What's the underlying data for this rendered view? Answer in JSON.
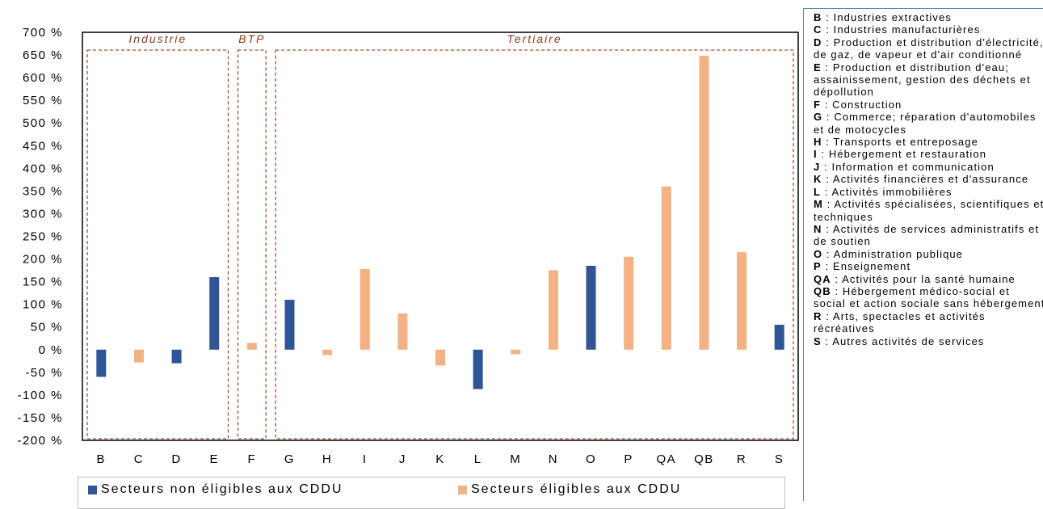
{
  "chart_data": {
    "type": "bar",
    "categories": [
      "B",
      "C",
      "D",
      "E",
      "F",
      "G",
      "H",
      "I",
      "J",
      "K",
      "L",
      "M",
      "N",
      "O",
      "P",
      "QA",
      "QB",
      "R",
      "S"
    ],
    "values": [
      -60,
      -28,
      -30,
      160,
      15,
      110,
      -12,
      178,
      80,
      -35,
      -87,
      -10,
      175,
      185,
      205,
      360,
      648,
      215,
      55
    ],
    "eligible": [
      false,
      true,
      false,
      false,
      true,
      false,
      true,
      true,
      true,
      true,
      false,
      true,
      true,
      false,
      true,
      true,
      true,
      true,
      false
    ],
    "ylim": [
      -200,
      700
    ],
    "ystep": 50,
    "y_tick_suffix": " %",
    "colors": {
      "non_eligible": "#2f5597",
      "eligible": "#f4b183",
      "group_border": "#a0522d"
    },
    "groups": [
      {
        "label": "Industrie",
        "from": "B",
        "to": "E"
      },
      {
        "label": "BTP",
        "from": "F",
        "to": "F"
      },
      {
        "label": "Tertiaire",
        "from": "G",
        "to": "S"
      }
    ],
    "legend": [
      {
        "label": "Secteurs non éligibles aux CDDU",
        "color": "#2f5597"
      },
      {
        "label": "Secteurs éligibles aux CDDU",
        "color": "#f4b183"
      }
    ],
    "xlabel": "",
    "ylabel": "",
    "grid": false
  },
  "sectors": [
    {
      "code": "B",
      "text": " : Industries extractives"
    },
    {
      "code": "C",
      "text": " : Industries manufacturières"
    },
    {
      "code": "D",
      "text": " : Production et distribution d'électricité, de gaz, de vapeur et d'air conditionné"
    },
    {
      "code": "E",
      "text": " : Production et distribution d'eau; assainissement, gestion des déchets et dépollution"
    },
    {
      "code": "F",
      "text": " : Construction"
    },
    {
      "code": "G",
      "text": " : Commerce; réparation d'automobiles et de motocycles"
    },
    {
      "code": "H",
      "text": " : Transports et entreposage"
    },
    {
      "code": "I",
      "text": " : Hébergement et restauration"
    },
    {
      "code": "J",
      "text": " : Information et communication"
    },
    {
      "code": "K",
      "text": " : Activités financières et d'assurance"
    },
    {
      "code": "L",
      "text": " : Activités immobilières"
    },
    {
      "code": "M",
      "text": " : Activités spécialisées, scientifiques et techniques"
    },
    {
      "code": "N",
      "text": " : Activités de services administratifs et de soutien"
    },
    {
      "code": "O",
      "text": " : Administration publique"
    },
    {
      "code": "P",
      "text": " : Enseignement"
    },
    {
      "code": "QA",
      "text": " : Activités pour la santé humaine"
    },
    {
      "code": "QB",
      "text": " : Hébergement médico-social et social et action sociale sans hébergement"
    },
    {
      "code": "R",
      "text": " : Arts, spectacles et activités récréatives"
    },
    {
      "code": "S",
      "text": " : Autres activités de services"
    }
  ]
}
